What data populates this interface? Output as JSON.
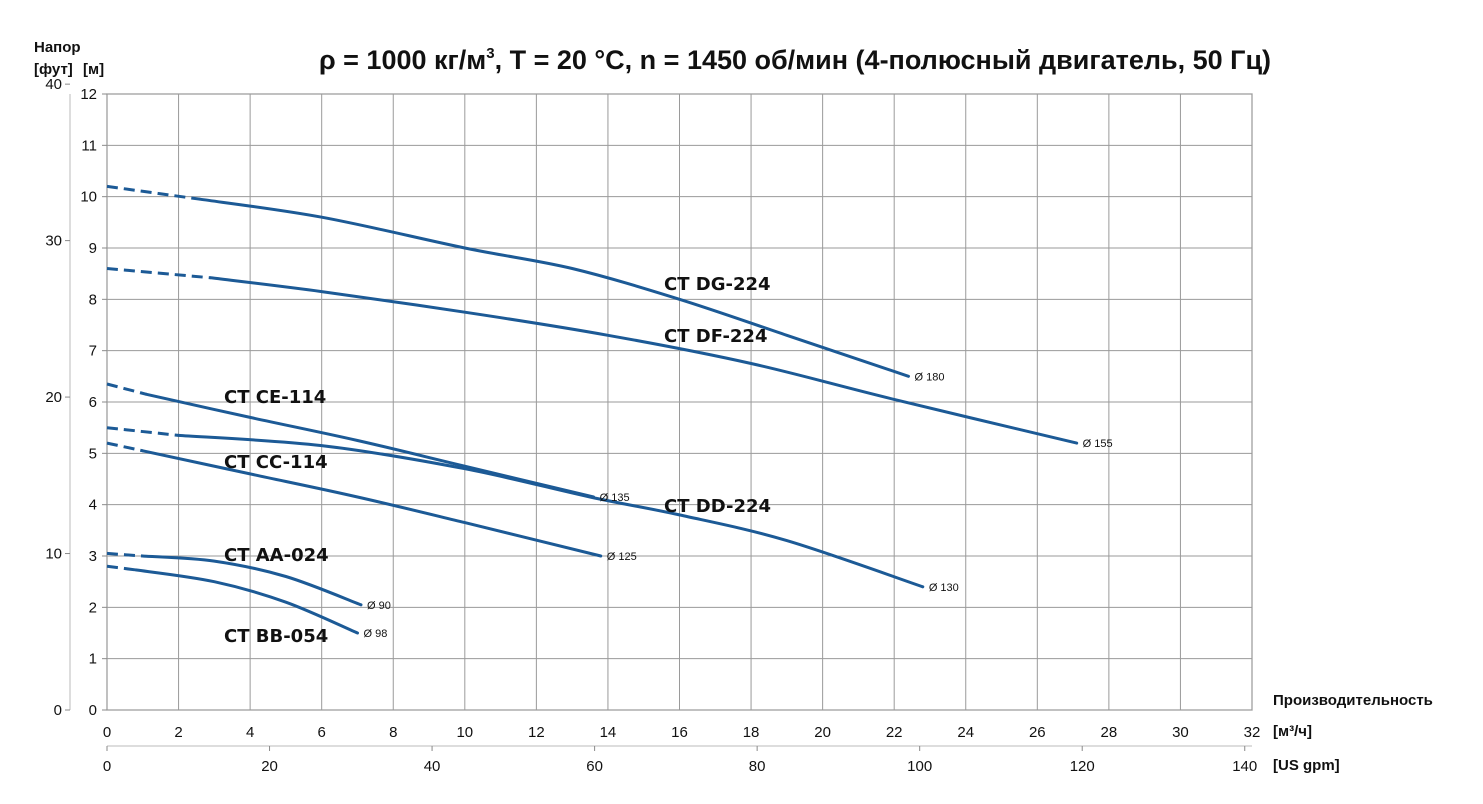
{
  "chart_data": {
    "type": "line",
    "title": "ρ = 1000 кг/м³, T = 20 °C, n = 1450 об/мин (4-полюсный двигатель, 50 Гц)",
    "ylabel_line1": "Напор",
    "ylabel_ft": "[фут]",
    "ylabel_m": "[м]",
    "xlabel": "Производительность",
    "x_unit_m3h": "[м³/ч]",
    "x_unit_gpm": "[US gpm]",
    "x_range_m3h": [
      0,
      32
    ],
    "x_ticks_m3h": [
      "0",
      "2",
      "4",
      "6",
      "8",
      "10",
      "12",
      "14",
      "16",
      "18",
      "20",
      "22",
      "24",
      "26",
      "28",
      "30",
      "32"
    ],
    "x_ticks_gpm": [
      "0",
      "20",
      "40",
      "60",
      "80",
      "100",
      "120",
      "140"
    ],
    "y_range_m": [
      0,
      12
    ],
    "y_ticks_m": [
      "0",
      "1",
      "2",
      "3",
      "4",
      "5",
      "6",
      "7",
      "8",
      "9",
      "10",
      "11",
      "12"
    ],
    "y_ticks_ft": [
      "0",
      "10",
      "20",
      "30",
      "40"
    ],
    "grid": true,
    "line_color": "#1c5a96",
    "series": [
      {
        "name": "CT DG-224",
        "diameter": "Ø 180",
        "dash_end": 2.6,
        "points": [
          [
            0,
            10.2
          ],
          [
            2.6,
            9.95
          ],
          [
            6,
            9.6
          ],
          [
            10,
            9.0
          ],
          [
            13,
            8.6
          ],
          [
            16,
            8.0
          ],
          [
            19,
            7.3
          ],
          [
            22.4,
            6.5
          ]
        ]
      },
      {
        "name": "CT DF-224",
        "diameter": "Ø 155",
        "dash_end": 2.9,
        "points": [
          [
            0,
            8.6
          ],
          [
            2.9,
            8.42
          ],
          [
            6,
            8.15
          ],
          [
            10,
            7.75
          ],
          [
            14,
            7.3
          ],
          [
            18,
            6.75
          ],
          [
            22,
            6.05
          ],
          [
            27.1,
            5.2
          ]
        ]
      },
      {
        "name": "CT CE-114",
        "diameter": "Ø 135",
        "dash_end": 1.1,
        "points": [
          [
            0,
            6.35
          ],
          [
            1.1,
            6.15
          ],
          [
            4,
            5.7
          ],
          [
            7,
            5.25
          ],
          [
            10,
            4.75
          ],
          [
            13.6,
            4.15
          ]
        ]
      },
      {
        "name": "CT CC-114",
        "diameter": "Ø 125",
        "dash_end": 1.0,
        "points": [
          [
            0,
            5.2
          ],
          [
            1.0,
            5.05
          ],
          [
            4,
            4.6
          ],
          [
            7,
            4.15
          ],
          [
            10,
            3.65
          ],
          [
            13.8,
            3.0
          ]
        ]
      },
      {
        "name": "CT DD-224",
        "diameter": "Ø 130",
        "dash_end": 2.0,
        "points": [
          [
            0,
            5.5
          ],
          [
            2.0,
            5.35
          ],
          [
            6,
            5.15
          ],
          [
            10,
            4.7
          ],
          [
            13.5,
            4.15
          ],
          [
            16,
            3.8
          ],
          [
            19,
            3.3
          ],
          [
            22.8,
            2.4
          ]
        ]
      },
      {
        "name": "CT AA-024",
        "diameter": "Ø 90",
        "dash_end": 1.0,
        "points": [
          [
            0,
            3.05
          ],
          [
            1.0,
            3.0
          ],
          [
            3,
            2.9
          ],
          [
            5,
            2.6
          ],
          [
            7.1,
            2.05
          ]
        ]
      },
      {
        "name": "CT BB-054",
        "diameter": "Ø 98",
        "dash_end": 0.8,
        "points": [
          [
            0,
            2.8
          ],
          [
            0.8,
            2.73
          ],
          [
            3,
            2.5
          ],
          [
            5,
            2.1
          ],
          [
            7.0,
            1.5
          ]
        ]
      }
    ]
  }
}
